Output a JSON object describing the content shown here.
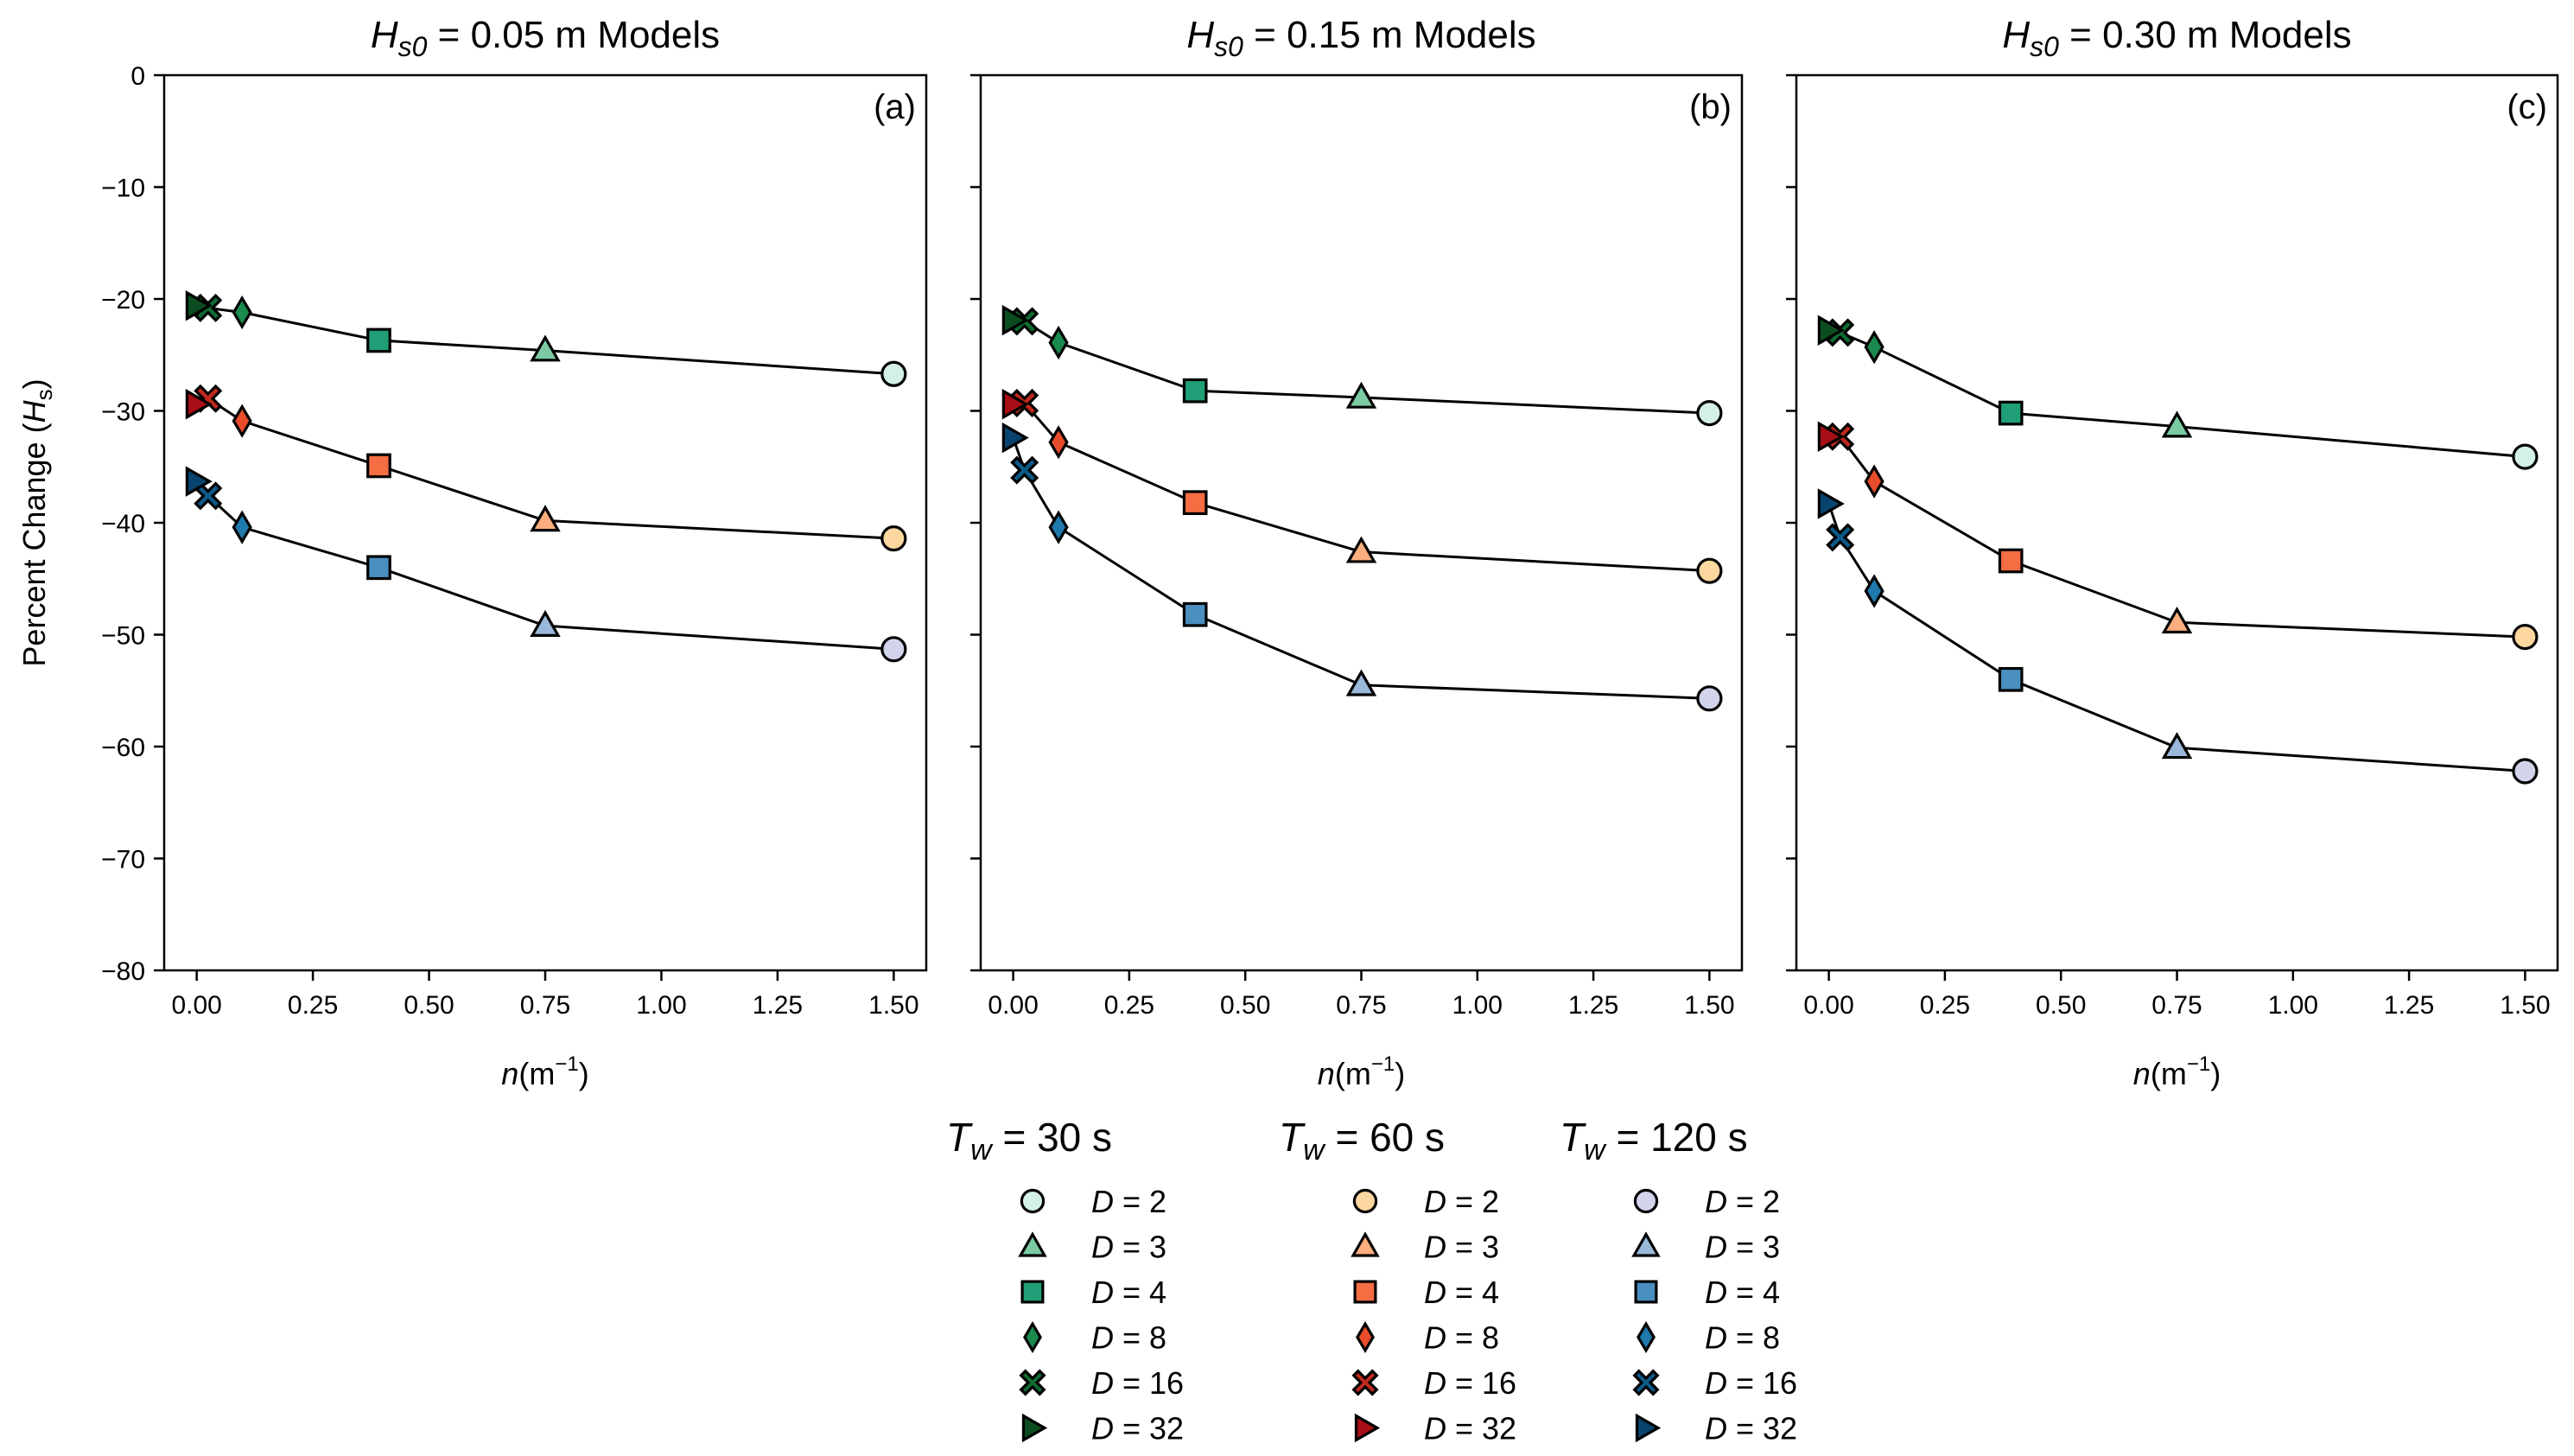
{
  "figure": {
    "y_axis_label": "Percent Change (",
    "y_axis_label_var": "H",
    "y_axis_label_sub": "s",
    "y_axis_label_close": ")",
    "x_axis_label_var": "n",
    "x_axis_label_units": "(m",
    "x_axis_label_exp": "−1",
    "x_axis_label_close": ")"
  },
  "legend": {
    "groups": [
      {
        "title_var": "T",
        "title_sub": "w",
        "title_value": " = 30 s",
        "items": [
          {
            "shape": "circle",
            "label_var": "D",
            "label_value": " = 2",
            "color": "#d4f1e8"
          },
          {
            "shape": "triangle",
            "label_var": "D",
            "label_value": " = 3",
            "color": "#7bcaa2"
          },
          {
            "shape": "square",
            "label_var": "D",
            "label_value": " = 4",
            "color": "#1f9e77"
          },
          {
            "shape": "diamond",
            "label_var": "D",
            "label_value": " = 8",
            "color": "#1a8a4e"
          },
          {
            "shape": "cross",
            "label_var": "D",
            "label_value": " = 16",
            "color": "#0f6b32"
          },
          {
            "shape": "right-triangle",
            "label_var": "D",
            "label_value": " = 32",
            "color": "#0b4d20"
          }
        ]
      },
      {
        "title_var": "T",
        "title_sub": "w",
        "title_value": " = 60 s",
        "items": [
          {
            "shape": "circle",
            "label_var": "D",
            "label_value": " = 2",
            "color": "#fdd7a0"
          },
          {
            "shape": "triangle",
            "label_var": "D",
            "label_value": " = 3",
            "color": "#fcae7e"
          },
          {
            "shape": "square",
            "label_var": "D",
            "label_value": " = 4",
            "color": "#f46d43"
          },
          {
            "shape": "diamond",
            "label_var": "D",
            "label_value": " = 8",
            "color": "#e74c2b"
          },
          {
            "shape": "cross",
            "label_var": "D",
            "label_value": " = 16",
            "color": "#c0281c"
          },
          {
            "shape": "right-triangle",
            "label_var": "D",
            "label_value": " = 32",
            "color": "#a50f15"
          }
        ]
      },
      {
        "title_var": "T",
        "title_sub": "w",
        "title_value": " = 120 s",
        "items": [
          {
            "shape": "circle",
            "label_var": "D",
            "label_value": " = 2",
            "color": "#d2d4ec"
          },
          {
            "shape": "triangle",
            "label_var": "D",
            "label_value": " = 3",
            "color": "#9ab8d9"
          },
          {
            "shape": "square",
            "label_var": "D",
            "label_value": " = 4",
            "color": "#4a8fc0"
          },
          {
            "shape": "diamond",
            "label_var": "D",
            "label_value": " = 8",
            "color": "#1f79ad"
          },
          {
            "shape": "cross",
            "label_var": "D",
            "label_value": " = 16",
            "color": "#0c5a88"
          },
          {
            "shape": "right-triangle",
            "label_var": "D",
            "label_value": " = 32",
            "color": "#08446d"
          }
        ]
      }
    ]
  },
  "chart_data": [
    {
      "type": "line",
      "title_var": "H",
      "title_sub": "s0",
      "title_value": " = 0.05 m Models",
      "panel_tag": "(a)",
      "xlabel": "n (m⁻¹)",
      "ylabel": "Percent Change (Hs)",
      "xlim": [
        -0.07,
        1.57
      ],
      "ylim": [
        -80,
        0
      ],
      "xticks": [
        0.0,
        0.25,
        0.5,
        0.75,
        1.0,
        1.25,
        1.5
      ],
      "xtick_labels": [
        "0.00",
        "0.25",
        "0.50",
        "0.75",
        "1.00",
        "1.25",
        "1.50"
      ],
      "yticks": [
        0,
        -10,
        -20,
        -30,
        -40,
        -50,
        -60,
        -70,
        -80
      ],
      "ytick_labels": [
        "0",
        "−10",
        "−20",
        "−30",
        "−40",
        "−50",
        "−60",
        "−70",
        "−80"
      ],
      "x": [
        1.5,
        0.75,
        0.392,
        0.0977,
        0.0244,
        0.0
      ],
      "series": [
        {
          "name": "Tw = 30 s",
          "values": [
            -26.7,
            -24.6,
            -23.7,
            -21.2,
            -20.8,
            -20.6
          ]
        },
        {
          "name": "Tw = 60 s",
          "values": [
            -41.4,
            -39.8,
            -34.9,
            -30.9,
            -28.9,
            -29.4
          ]
        },
        {
          "name": "Tw = 120 s",
          "values": [
            -51.3,
            -49.2,
            -44.0,
            -40.4,
            -37.6,
            -36.3
          ]
        }
      ]
    },
    {
      "type": "line",
      "title_var": "H",
      "title_sub": "s0",
      "title_value": " = 0.15 m Models",
      "panel_tag": "(b)",
      "xlabel": "n (m⁻¹)",
      "ylabel": "Percent Change (Hs)",
      "xlim": [
        -0.07,
        1.57
      ],
      "ylim": [
        -80,
        0
      ],
      "xticks": [
        0.0,
        0.25,
        0.5,
        0.75,
        1.0,
        1.25,
        1.5
      ],
      "xtick_labels": [
        "0.00",
        "0.25",
        "0.50",
        "0.75",
        "1.00",
        "1.25",
        "1.50"
      ],
      "yticks": [
        0,
        -10,
        -20,
        -30,
        -40,
        -50,
        -60,
        -70,
        -80
      ],
      "ytick_labels": [
        "0",
        "−10",
        "−20",
        "−30",
        "−40",
        "−50",
        "−60",
        "−70",
        "−80"
      ],
      "x": [
        1.5,
        0.75,
        0.392,
        0.0977,
        0.0244,
        0.0
      ],
      "series": [
        {
          "name": "Tw = 30 s",
          "values": [
            -30.2,
            -28.8,
            -28.2,
            -23.9,
            -22.0,
            -21.9
          ]
        },
        {
          "name": "Tw = 60 s",
          "values": [
            -44.3,
            -42.6,
            -38.2,
            -32.8,
            -29.3,
            -29.4
          ]
        },
        {
          "name": "Tw = 120 s",
          "values": [
            -55.7,
            -54.5,
            -48.2,
            -40.4,
            -35.3,
            -32.4
          ]
        }
      ]
    },
    {
      "type": "line",
      "title_var": "H",
      "title_sub": "s0",
      "title_value": " = 0.30 m Models",
      "panel_tag": "(c)",
      "xlabel": "n (m⁻¹)",
      "ylabel": "Percent Change (Hs)",
      "xlim": [
        -0.07,
        1.57
      ],
      "ylim": [
        -80,
        0
      ],
      "xticks": [
        0.0,
        0.25,
        0.5,
        0.75,
        1.0,
        1.25,
        1.5
      ],
      "xtick_labels": [
        "0.00",
        "0.25",
        "0.50",
        "0.75",
        "1.00",
        "1.25",
        "1.50"
      ],
      "yticks": [
        0,
        -10,
        -20,
        -30,
        -40,
        -50,
        -60,
        -70,
        -80
      ],
      "ytick_labels": [
        "0",
        "−10",
        "−20",
        "−30",
        "−40",
        "−50",
        "−60",
        "−70",
        "−80"
      ],
      "x": [
        1.5,
        0.75,
        0.392,
        0.0977,
        0.0244,
        0.0
      ],
      "series": [
        {
          "name": "Tw = 30 s",
          "values": [
            -34.1,
            -31.4,
            -30.2,
            -24.3,
            -23.0,
            -22.8
          ]
        },
        {
          "name": "Tw = 60 s",
          "values": [
            -50.2,
            -48.9,
            -43.4,
            -36.3,
            -32.3,
            -32.3
          ]
        },
        {
          "name": "Tw = 120 s",
          "values": [
            -62.2,
            -60.1,
            -54.0,
            -46.1,
            -41.3,
            -38.3
          ]
        }
      ]
    }
  ]
}
